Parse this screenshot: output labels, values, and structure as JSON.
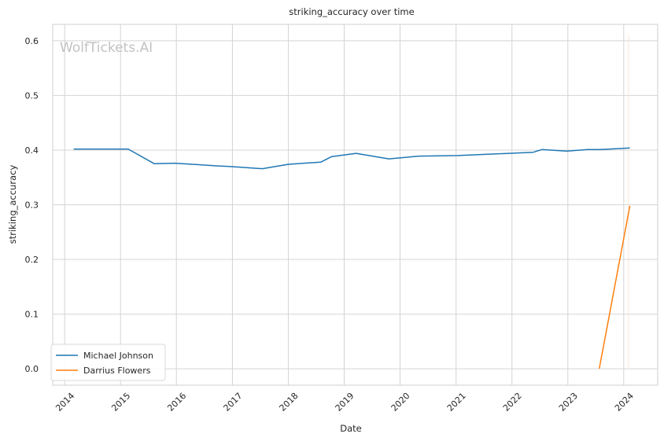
{
  "chart_data": {
    "type": "line",
    "title": "striking_accuracy over time",
    "xlabel": "Date",
    "ylabel": "striking_accuracy",
    "watermark": "WolfTickets.AI",
    "x_ticks": [
      "2014",
      "2015",
      "2016",
      "2017",
      "2018",
      "2019",
      "2020",
      "2021",
      "2022",
      "2023",
      "2024"
    ],
    "y_ticks": [
      "0.0",
      "0.1",
      "0.2",
      "0.3",
      "0.4",
      "0.5",
      "0.6"
    ],
    "xlim": [
      "2013-10-15",
      "2024-08-10"
    ],
    "ylim": [
      -0.03,
      0.63
    ],
    "grid": true,
    "legend_position": "lower-left",
    "series": [
      {
        "name": "Michael Johnson",
        "color": "#1f77b4",
        "points": [
          [
            "2014-03-01",
            0.402
          ],
          [
            "2015-02-20",
            0.402
          ],
          [
            "2015-08-10",
            0.375
          ],
          [
            "2015-12-20",
            0.376
          ],
          [
            "2016-10-01",
            0.371
          ],
          [
            "2016-12-10",
            0.37
          ],
          [
            "2017-07-15",
            0.366
          ],
          [
            "2018-01-01",
            0.374
          ],
          [
            "2018-08-01",
            0.378
          ],
          [
            "2018-10-10",
            0.388
          ],
          [
            "2019-03-20",
            0.394
          ],
          [
            "2019-10-20",
            0.384
          ],
          [
            "2020-05-01",
            0.389
          ],
          [
            "2021-01-10",
            0.39
          ],
          [
            "2022-05-20",
            0.396
          ],
          [
            "2022-07-15",
            0.401
          ],
          [
            "2022-12-25",
            0.398
          ],
          [
            "2023-05-10",
            0.401
          ],
          [
            "2023-08-01",
            0.401
          ],
          [
            "2024-02-10",
            0.404
          ]
        ]
      },
      {
        "name": "Darrius Flowers",
        "color": "#ff7f0e",
        "points": [
          [
            "2023-07-25",
            0.0
          ],
          [
            "2024-02-10",
            0.298
          ]
        ]
      }
    ]
  }
}
